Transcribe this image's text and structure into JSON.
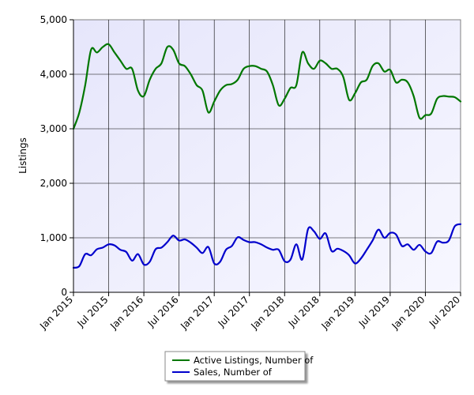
{
  "chart_data": {
    "type": "line",
    "title": "",
    "xlabel": "",
    "ylabel": "Listings",
    "ylim": [
      0,
      5000
    ],
    "yticks": [
      0,
      1000,
      2000,
      3000,
      4000,
      5000
    ],
    "ytick_labels": [
      "0",
      "1,000",
      "2,000",
      "3,000",
      "4,000",
      "5,000"
    ],
    "xlim": [
      "2015-01",
      "2020-07"
    ],
    "xticks": [
      "2015-01",
      "2015-07",
      "2016-01",
      "2016-07",
      "2017-01",
      "2017-07",
      "2018-01",
      "2018-07",
      "2019-01",
      "2019-07",
      "2020-01",
      "2020-07"
    ],
    "xtick_labels": [
      "Jan 2015",
      "Jul 2015",
      "Jan 2016",
      "Jul 2016",
      "Jan 2017",
      "Jul 2017",
      "Jan 2018",
      "Jul 2018",
      "Jan 2019",
      "Jul 2019",
      "Jan 2020",
      "Jul 2020"
    ],
    "grid": true,
    "legend_position": "bottom-center",
    "background": "#eeeeff",
    "x": [
      "2015-01",
      "2015-02",
      "2015-03",
      "2015-04",
      "2015-05",
      "2015-06",
      "2015-07",
      "2015-08",
      "2015-09",
      "2015-10",
      "2015-11",
      "2015-12",
      "2016-01",
      "2016-02",
      "2016-03",
      "2016-04",
      "2016-05",
      "2016-06",
      "2016-07",
      "2016-08",
      "2016-09",
      "2016-10",
      "2016-11",
      "2016-12",
      "2017-01",
      "2017-02",
      "2017-03",
      "2017-04",
      "2017-05",
      "2017-06",
      "2017-07",
      "2017-08",
      "2017-09",
      "2017-10",
      "2017-11",
      "2017-12",
      "2018-01",
      "2018-02",
      "2018-03",
      "2018-04",
      "2018-05",
      "2018-06",
      "2018-07",
      "2018-08",
      "2018-09",
      "2018-10",
      "2018-11",
      "2018-12",
      "2019-01",
      "2019-02",
      "2019-03",
      "2019-04",
      "2019-05",
      "2019-06",
      "2019-07",
      "2019-08",
      "2019-09",
      "2019-10",
      "2019-11",
      "2019-12",
      "2020-01",
      "2020-02",
      "2020-03",
      "2020-04",
      "2020-05",
      "2020-06",
      "2020-07"
    ],
    "series": [
      {
        "name": "Active Listings, Number of",
        "color": "#007700",
        "values": [
          3000,
          3300,
          3800,
          4450,
          4400,
          4500,
          4550,
          4400,
          4250,
          4100,
          4100,
          3700,
          3600,
          3900,
          4100,
          4200,
          4500,
          4450,
          4200,
          4150,
          4000,
          3800,
          3700,
          3300,
          3500,
          3700,
          3800,
          3820,
          3900,
          4100,
          4150,
          4150,
          4100,
          4050,
          3800,
          3430,
          3550,
          3750,
          3800,
          4400,
          4200,
          4100,
          4250,
          4200,
          4100,
          4100,
          3950,
          3530,
          3650,
          3850,
          3900,
          4150,
          4200,
          4050,
          4080,
          3850,
          3900,
          3850,
          3600,
          3200,
          3250,
          3280,
          3550,
          3600,
          3590,
          3580,
          3500
        ]
      },
      {
        "name": "Sales, Number of",
        "color": "#0000cc",
        "values": [
          450,
          480,
          700,
          680,
          790,
          820,
          880,
          860,
          780,
          740,
          580,
          700,
          510,
          560,
          790,
          820,
          920,
          1040,
          950,
          970,
          910,
          820,
          720,
          830,
          530,
          560,
          780,
          850,
          1010,
          960,
          920,
          920,
          880,
          820,
          780,
          780,
          570,
          600,
          880,
          600,
          1160,
          1120,
          980,
          1080,
          760,
          800,
          760,
          680,
          530,
          620,
          780,
          950,
          1150,
          1000,
          1090,
          1060,
          850,
          880,
          780,
          870,
          750,
          720,
          930,
          910,
          950,
          1210,
          1250
        ]
      }
    ]
  }
}
